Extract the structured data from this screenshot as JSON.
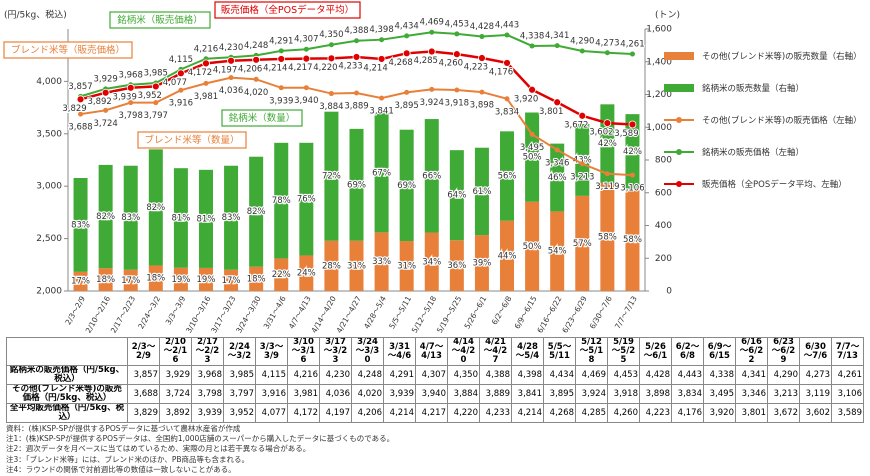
{
  "chart_data": {
    "type": "combo",
    "y_label": "(円/5kg、税込)",
    "y2_label": "(トン)",
    "categories": [
      "2/3～2/9",
      "2/10～2/16",
      "2/17～2/23",
      "2/24～3/2",
      "3/3～3/9",
      "3/10～3/16",
      "3/17～3/23",
      "3/24～3/30",
      "3/31～4/6",
      "4/7～4/13",
      "4/14～4/20",
      "4/21～4/27",
      "4/28～5/4",
      "5/5～5/11",
      "5/12～5/18",
      "5/19～5/25",
      "5/26～6/1",
      "6/2～6/8",
      "6/9～6/15",
      "6/16～6/22",
      "6/23～6/29",
      "6/30～7/6",
      "7/7～7/13"
    ],
    "ylim": [
      2000,
      4500
    ],
    "yticks": [
      {
        "value": 2000,
        "label": "2,000"
      },
      {
        "value": 2500,
        "label": "2,500"
      },
      {
        "value": 3000,
        "label": "3,000"
      },
      {
        "value": 3500,
        "label": "3,500"
      },
      {
        "value": 4000,
        "label": "4,000"
      }
    ],
    "y2lim": [
      0,
      1600
    ],
    "y2ticks": [
      0,
      200,
      400,
      600,
      800,
      {
        "value": 1000,
        "label": "1,000"
      },
      {
        "value": 1200,
        "label": "1,200"
      },
      {
        "value": 1400,
        "label": "1,400"
      },
      {
        "value": 1600,
        "label": "1,600"
      }
    ],
    "series": [
      {
        "name": "その他(ブレンド米等)の販売数量（右軸）",
        "type": "bar",
        "axis": "y2",
        "color": "#e8803a",
        "values": [
          117,
          139,
          130,
          156,
          142,
          141,
          130,
          148,
          199,
          217,
          307,
          307,
          358,
          305,
          357,
          310,
          341,
          429,
          545,
          486,
          581,
          661,
          626
        ],
        "share_labels": [
          "17%",
          "18%",
          "17%",
          "18%",
          "19%",
          "19%",
          "17%",
          "18%",
          "22%",
          "24%",
          "28%",
          "31%",
          "33%",
          "31%",
          "34%",
          "36%",
          "39%",
          "44%",
          "50%",
          "54%",
          "57%",
          "58%",
          "58%"
        ]
      },
      {
        "name": "銘柄米の販売数量（右軸）",
        "type": "bar",
        "axis": "y2",
        "color": "#3faa35",
        "values": [
          573,
          631,
          635,
          709,
          608,
          599,
          635,
          672,
          706,
          688,
          788,
          683,
          727,
          680,
          693,
          550,
          534,
          546,
          545,
          414,
          439,
          479,
          454
        ],
        "share_labels": [
          "83%",
          "82%",
          "83%",
          "82%",
          "81%",
          "81%",
          "83%",
          "82%",
          "78%",
          "76%",
          "72%",
          "69%",
          "67%",
          "69%",
          "66%",
          "64%",
          "61%",
          "56%",
          "50%",
          "46%",
          "43%",
          "42%",
          "42%"
        ]
      },
      {
        "name": "その他(ブレンド米等)の販売価格（左軸）",
        "type": "line",
        "color": "#e8803a",
        "values": [
          3688,
          3724,
          3798,
          3797,
          3916,
          3981,
          4036,
          4020,
          3939,
          3940,
          3884,
          3889,
          3841,
          3895,
          3924,
          3918,
          3898,
          3834,
          3495,
          3346,
          3213,
          3119,
          3106
        ],
        "value_labels": [
          "3,688",
          "3,724",
          "3,798",
          "3,797",
          "3,916",
          "3,981",
          "4,036",
          "4,020",
          "3,939",
          "3,940",
          "3,884",
          "3,889",
          "3,841",
          "3,895",
          "3,924",
          "3,918",
          "3,898",
          "3,834",
          "3,495",
          "3,346",
          "3,213",
          "3,119",
          "3,106"
        ]
      },
      {
        "name": "銘柄米の販売価格（左軸）",
        "type": "line",
        "color": "#3faa35",
        "values": [
          3857,
          3929,
          3968,
          3985,
          4115,
          4216,
          4230,
          4248,
          4291,
          4307,
          4350,
          4388,
          4398,
          4434,
          4469,
          4453,
          4428,
          4443,
          4338,
          4341,
          4290,
          4273,
          4261
        ],
        "value_labels": [
          "3,857",
          "3,929",
          "3,968",
          "3,985",
          "4,115",
          "4,216",
          "4,230",
          "4,248",
          "4,291",
          "4,307",
          "4,350",
          "4,388",
          "4,398",
          "4,434",
          "4,469",
          "4,453",
          "4,428",
          "4,443",
          "4,338",
          "4,341",
          "4,290",
          "4,273",
          "4,261"
        ]
      },
      {
        "name": "販売価格（全POSデータ平均、左軸）",
        "type": "line",
        "color": "#e00000",
        "values": [
          3829,
          3892,
          3939,
          3952,
          4077,
          4172,
          4197,
          4206,
          4214,
          4217,
          4220,
          4233,
          4214,
          4268,
          4285,
          4260,
          4223,
          4176,
          3920,
          3801,
          3672,
          3602,
          3589
        ],
        "value_labels": [
          "3,829",
          "3,892",
          "3,939",
          "3,952",
          "4,077",
          "4,172",
          "4,197",
          "4,206",
          "4,214",
          "4,217",
          "4,220",
          "4,233",
          "4,214",
          "4,268",
          "4,285",
          "4,260",
          "4,223",
          "4,176",
          "3,920",
          "3,801",
          "3,672",
          "3,602",
          "3,589"
        ]
      }
    ],
    "annotations": [
      {
        "text": "銘柄米（販売価格）",
        "color": "#3faa35"
      },
      {
        "text": "販売価格（全POSデータ平均）",
        "color": "#e00000"
      },
      {
        "text": "ブレンド米等（販売価格）",
        "color": "#e8803a"
      },
      {
        "text": "ブレンド米等（数量）",
        "color": "#e8803a"
      },
      {
        "text": "銘柄米（数量）",
        "color": "#3faa35"
      }
    ]
  },
  "table": {
    "row_headers": [
      "銘柄米の販売価格（円/5kg、税込）",
      "その他(ブレンド米等)の販売価格（円/5kg、税込）",
      "全平均販売価格（円/5kg、税込）"
    ]
  },
  "notes": [
    "資料：(株)KSP-SPが提供するPOSデータに基づいて農林水産省が作成",
    "注1：(株)KSP-SPが提供するPOSデータは、全国約1,000店舗のスーパーから購入したデータに基づくものである。",
    "注2：週次データを月ベースに当てはめているため、実際の月とは若干異なる場合がある。",
    "注3：「ブレンド米等」には、ブレンド米のほか、PB商品等も含まれる。",
    "注4：ラウンドの関係で対前週比等の数値は一致しないことがある。"
  ]
}
